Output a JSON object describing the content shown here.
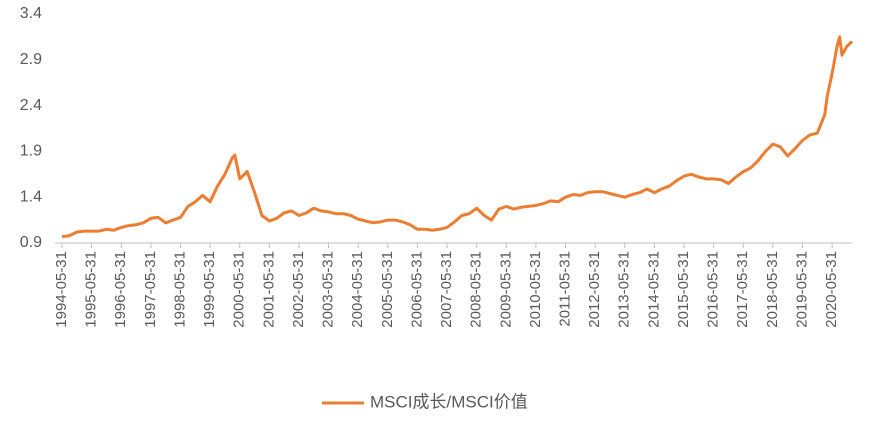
{
  "chart_data": {
    "type": "line",
    "legend_position": "bottom",
    "series": [
      {
        "name": "MSCI成长/MSCI价值",
        "color": "#ED7D31",
        "x": [
          "1994-05-31",
          "1994-08-31",
          "1994-11-30",
          "1995-02-28",
          "1995-05-31",
          "1995-08-31",
          "1995-11-30",
          "1996-02-29",
          "1996-05-31",
          "1996-08-31",
          "1996-11-30",
          "1997-02-28",
          "1997-05-31",
          "1997-08-31",
          "1997-11-30",
          "1998-02-28",
          "1998-05-31",
          "1998-08-31",
          "1998-11-30",
          "1999-02-28",
          "1999-05-31",
          "1999-08-31",
          "1999-11-30",
          "2000-02-29",
          "2000-03-31",
          "2000-05-31",
          "2000-08-31",
          "2000-11-30",
          "2001-02-28",
          "2001-05-31",
          "2001-08-31",
          "2001-11-30",
          "2002-02-28",
          "2002-05-31",
          "2002-08-31",
          "2002-11-30",
          "2003-02-28",
          "2003-05-31",
          "2003-08-31",
          "2003-11-30",
          "2004-02-29",
          "2004-05-31",
          "2004-08-31",
          "2004-11-30",
          "2005-02-28",
          "2005-05-31",
          "2005-08-31",
          "2005-11-30",
          "2006-02-28",
          "2006-05-31",
          "2006-08-31",
          "2006-11-30",
          "2007-02-28",
          "2007-05-31",
          "2007-08-31",
          "2007-11-30",
          "2008-02-29",
          "2008-05-31",
          "2008-08-31",
          "2008-11-30",
          "2009-02-28",
          "2009-05-31",
          "2009-08-31",
          "2009-11-30",
          "2010-02-28",
          "2010-05-31",
          "2010-08-31",
          "2010-11-30",
          "2011-02-28",
          "2011-05-31",
          "2011-08-31",
          "2011-11-30",
          "2012-02-29",
          "2012-05-31",
          "2012-08-31",
          "2012-11-30",
          "2013-02-28",
          "2013-05-31",
          "2013-08-31",
          "2013-11-30",
          "2014-02-28",
          "2014-05-31",
          "2014-08-31",
          "2014-11-30",
          "2015-02-28",
          "2015-05-31",
          "2015-08-31",
          "2015-11-30",
          "2016-02-29",
          "2016-05-31",
          "2016-08-31",
          "2016-11-30",
          "2017-02-28",
          "2017-05-31",
          "2017-08-31",
          "2017-11-30",
          "2018-02-28",
          "2018-05-31",
          "2018-08-31",
          "2018-11-30",
          "2019-02-28",
          "2019-05-31",
          "2019-08-31",
          "2019-11-30",
          "2020-02-29",
          "2020-03-31",
          "2020-05-31",
          "2020-07-31",
          "2020-08-31",
          "2020-09-30",
          "2020-11-30",
          "2021-01-31"
        ],
        "values": [
          0.97,
          0.98,
          1.02,
          1.03,
          1.03,
          1.03,
          1.05,
          1.04,
          1.07,
          1.09,
          1.1,
          1.12,
          1.17,
          1.18,
          1.12,
          1.15,
          1.18,
          1.3,
          1.35,
          1.42,
          1.35,
          1.52,
          1.65,
          1.83,
          1.86,
          1.6,
          1.68,
          1.45,
          1.2,
          1.14,
          1.17,
          1.23,
          1.25,
          1.2,
          1.23,
          1.28,
          1.25,
          1.24,
          1.22,
          1.22,
          1.2,
          1.16,
          1.14,
          1.12,
          1.13,
          1.15,
          1.15,
          1.13,
          1.1,
          1.05,
          1.05,
          1.04,
          1.05,
          1.07,
          1.13,
          1.2,
          1.22,
          1.28,
          1.2,
          1.15,
          1.27,
          1.3,
          1.27,
          1.29,
          1.3,
          1.31,
          1.33,
          1.36,
          1.35,
          1.4,
          1.43,
          1.42,
          1.45,
          1.46,
          1.46,
          1.44,
          1.42,
          1.4,
          1.43,
          1.45,
          1.49,
          1.45,
          1.49,
          1.52,
          1.58,
          1.63,
          1.65,
          1.62,
          1.6,
          1.6,
          1.59,
          1.55,
          1.62,
          1.68,
          1.72,
          1.8,
          1.9,
          1.98,
          1.95,
          1.85,
          1.93,
          2.02,
          2.08,
          2.1,
          2.3,
          2.5,
          2.75,
          3.05,
          3.15,
          2.95,
          3.05,
          3.1
        ]
      }
    ],
    "xlim": [
      "1994-05-31",
      "2021-01-31"
    ],
    "xticks": [
      "1994-05-31",
      "1995-05-31",
      "1996-05-31",
      "1997-05-31",
      "1998-05-31",
      "1999-05-31",
      "2000-05-31",
      "2001-05-31",
      "2002-05-31",
      "2003-05-31",
      "2004-05-31",
      "2005-05-31",
      "2006-05-31",
      "2007-05-31",
      "2008-05-31",
      "2009-05-31",
      "2010-05-31",
      "2011-05-31",
      "2012-05-31",
      "2013-05-31",
      "2014-05-31",
      "2015-05-31",
      "2016-05-31",
      "2017-05-31",
      "2018-05-31",
      "2019-05-31",
      "2020-05-31"
    ],
    "ylim": [
      0.9,
      3.4
    ],
    "yticks": [
      0.9,
      1.4,
      1.9,
      2.4,
      2.9,
      3.4
    ]
  }
}
